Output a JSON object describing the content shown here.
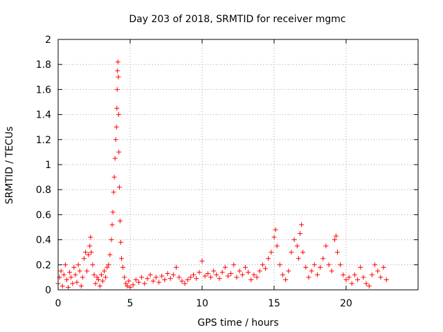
{
  "chart_data": {
    "type": "scatter",
    "title": "Day 203 of 2018, SRMTID for receiver mgmc",
    "xlabel": "GPS time / hours",
    "ylabel": "SRMTID / TECUs",
    "xlim": [
      0,
      25
    ],
    "ylim": [
      0,
      2
    ],
    "xticks": [
      0,
      5,
      10,
      15,
      20
    ],
    "xtick_labels": [
      "0",
      "5",
      "10",
      "15",
      "20"
    ],
    "yticks": [
      0,
      0.2,
      0.4,
      0.6,
      0.8,
      1,
      1.2,
      1.4,
      1.6,
      1.8,
      2
    ],
    "ytick_labels": [
      "0",
      "0.2",
      "0.4",
      "0.6",
      "0.8",
      "1",
      "1.2",
      "1.4",
      "1.6",
      "1.8",
      "2"
    ],
    "grid": true,
    "marker": "+",
    "color": "#ff0000",
    "series": [
      {
        "name": "SRMTID",
        "points": [
          [
            0.0,
            0.05
          ],
          [
            0.1,
            0.1
          ],
          [
            0.2,
            0.15
          ],
          [
            0.3,
            0.03
          ],
          [
            0.4,
            0.12
          ],
          [
            0.5,
            0.2
          ],
          [
            0.6,
            0.08
          ],
          [
            0.7,
            0.02
          ],
          [
            0.8,
            0.14
          ],
          [
            0.9,
            0.1
          ],
          [
            1.0,
            0.05
          ],
          [
            1.1,
            0.18
          ],
          [
            1.2,
            0.12
          ],
          [
            1.3,
            0.06
          ],
          [
            1.4,
            0.2
          ],
          [
            1.5,
            0.15
          ],
          [
            1.6,
            0.03
          ],
          [
            1.7,
            0.1
          ],
          [
            1.8,
            0.25
          ],
          [
            1.9,
            0.3
          ],
          [
            2.0,
            0.15
          ],
          [
            2.1,
            0.28
          ],
          [
            2.2,
            0.35
          ],
          [
            2.25,
            0.42
          ],
          [
            2.3,
            0.3
          ],
          [
            2.4,
            0.2
          ],
          [
            2.5,
            0.12
          ],
          [
            2.6,
            0.05
          ],
          [
            2.7,
            0.1
          ],
          [
            2.8,
            0.08
          ],
          [
            2.9,
            0.03
          ],
          [
            3.0,
            0.12
          ],
          [
            3.1,
            0.07
          ],
          [
            3.2,
            0.15
          ],
          [
            3.3,
            0.1
          ],
          [
            3.4,
            0.18
          ],
          [
            3.5,
            0.2
          ],
          [
            3.6,
            0.28
          ],
          [
            3.7,
            0.4
          ],
          [
            3.75,
            0.52
          ],
          [
            3.8,
            0.62
          ],
          [
            3.85,
            0.78
          ],
          [
            3.9,
            0.9
          ],
          [
            3.95,
            1.05
          ],
          [
            4.0,
            1.2
          ],
          [
            4.05,
            1.3
          ],
          [
            4.08,
            1.45
          ],
          [
            4.1,
            1.6
          ],
          [
            4.12,
            1.75
          ],
          [
            4.15,
            1.82
          ],
          [
            4.18,
            1.7
          ],
          [
            4.2,
            1.4
          ],
          [
            4.22,
            1.1
          ],
          [
            4.25,
            0.82
          ],
          [
            4.3,
            0.55
          ],
          [
            4.35,
            0.38
          ],
          [
            4.4,
            0.25
          ],
          [
            4.5,
            0.18
          ],
          [
            4.6,
            0.1
          ],
          [
            4.7,
            0.05
          ],
          [
            4.8,
            0.03
          ],
          [
            4.9,
            0.07
          ],
          [
            5.0,
            0.02
          ],
          [
            5.2,
            0.04
          ],
          [
            5.4,
            0.08
          ],
          [
            5.6,
            0.06
          ],
          [
            5.8,
            0.1
          ],
          [
            6.0,
            0.05
          ],
          [
            6.2,
            0.09
          ],
          [
            6.4,
            0.12
          ],
          [
            6.6,
            0.07
          ],
          [
            6.8,
            0.1
          ],
          [
            7.0,
            0.06
          ],
          [
            7.2,
            0.11
          ],
          [
            7.4,
            0.08
          ],
          [
            7.6,
            0.13
          ],
          [
            7.8,
            0.09
          ],
          [
            8.0,
            0.12
          ],
          [
            8.2,
            0.18
          ],
          [
            8.4,
            0.1
          ],
          [
            8.6,
            0.07
          ],
          [
            8.8,
            0.05
          ],
          [
            9.0,
            0.08
          ],
          [
            9.2,
            0.1
          ],
          [
            9.4,
            0.12
          ],
          [
            9.6,
            0.09
          ],
          [
            9.8,
            0.14
          ],
          [
            10.0,
            0.23
          ],
          [
            10.2,
            0.11
          ],
          [
            10.4,
            0.13
          ],
          [
            10.6,
            0.1
          ],
          [
            10.8,
            0.15
          ],
          [
            11.0,
            0.12
          ],
          [
            11.2,
            0.09
          ],
          [
            11.4,
            0.14
          ],
          [
            11.6,
            0.18
          ],
          [
            11.8,
            0.11
          ],
          [
            12.0,
            0.13
          ],
          [
            12.2,
            0.2
          ],
          [
            12.4,
            0.1
          ],
          [
            12.6,
            0.15
          ],
          [
            12.8,
            0.12
          ],
          [
            13.0,
            0.18
          ],
          [
            13.2,
            0.14
          ],
          [
            13.4,
            0.08
          ],
          [
            13.6,
            0.12
          ],
          [
            13.8,
            0.1
          ],
          [
            14.0,
            0.15
          ],
          [
            14.2,
            0.2
          ],
          [
            14.4,
            0.17
          ],
          [
            14.6,
            0.25
          ],
          [
            14.8,
            0.3
          ],
          [
            15.0,
            0.42
          ],
          [
            15.1,
            0.48
          ],
          [
            15.2,
            0.35
          ],
          [
            15.4,
            0.2
          ],
          [
            15.6,
            0.12
          ],
          [
            15.8,
            0.08
          ],
          [
            16.0,
            0.15
          ],
          [
            16.2,
            0.3
          ],
          [
            16.4,
            0.4
          ],
          [
            16.6,
            0.35
          ],
          [
            16.7,
            0.25
          ],
          [
            16.8,
            0.45
          ],
          [
            16.9,
            0.52
          ],
          [
            17.0,
            0.3
          ],
          [
            17.2,
            0.18
          ],
          [
            17.4,
            0.1
          ],
          [
            17.6,
            0.15
          ],
          [
            17.8,
            0.2
          ],
          [
            18.0,
            0.12
          ],
          [
            18.2,
            0.18
          ],
          [
            18.4,
            0.25
          ],
          [
            18.6,
            0.35
          ],
          [
            18.8,
            0.2
          ],
          [
            19.0,
            0.15
          ],
          [
            19.2,
            0.4
          ],
          [
            19.3,
            0.43
          ],
          [
            19.4,
            0.3
          ],
          [
            19.6,
            0.2
          ],
          [
            19.8,
            0.12
          ],
          [
            20.0,
            0.08
          ],
          [
            20.2,
            0.1
          ],
          [
            20.4,
            0.05
          ],
          [
            20.6,
            0.12
          ],
          [
            20.8,
            0.08
          ],
          [
            21.0,
            0.18
          ],
          [
            21.2,
            0.1
          ],
          [
            21.4,
            0.05
          ],
          [
            21.6,
            0.03
          ],
          [
            21.8,
            0.12
          ],
          [
            22.0,
            0.2
          ],
          [
            22.2,
            0.15
          ],
          [
            22.4,
            0.1
          ],
          [
            22.6,
            0.18
          ],
          [
            22.8,
            0.08
          ]
        ]
      }
    ]
  }
}
